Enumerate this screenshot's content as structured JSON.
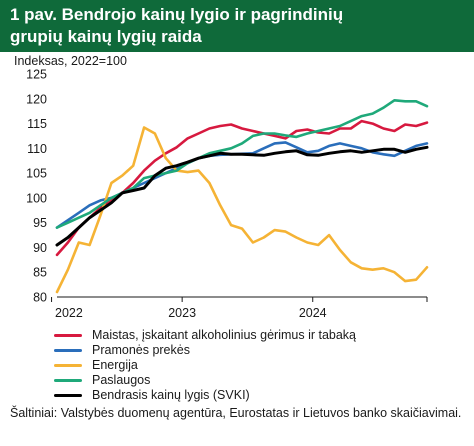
{
  "header": {
    "title_line1": "1 pav. Bendrojo kainų lygio ir pagrindinių",
    "title_line2": "grupių kainų lygių raida"
  },
  "chart_data": {
    "type": "line",
    "title": "1 pav. Bendrojo kainų lygio ir pagrindinių grupių kainų lygių raida",
    "ylabel": "Indeksas, 2022=100",
    "xlabel": "",
    "ylim": [
      80,
      125
    ],
    "yticks": [
      80,
      85,
      90,
      95,
      100,
      105,
      110,
      115,
      120,
      125
    ],
    "x_tick_labels": [
      "2022",
      "2023",
      "2024"
    ],
    "grid": false,
    "legend_placement": "bottom",
    "periods": [
      "2022-01",
      "2022-02",
      "2022-03",
      "2022-04",
      "2022-05",
      "2022-06",
      "2022-07",
      "2022-08",
      "2022-09",
      "2022-10",
      "2022-11",
      "2022-12",
      "2023-01",
      "2023-02",
      "2023-03",
      "2023-04",
      "2023-05",
      "2023-06",
      "2023-07",
      "2023-08",
      "2023-09",
      "2023-10",
      "2023-11",
      "2023-12",
      "2024-01",
      "2024-02",
      "2024-03",
      "2024-04",
      "2024-05",
      "2024-06",
      "2024-07",
      "2024-08",
      "2024-09",
      "2024-10",
      "2024-11"
    ],
    "series": [
      {
        "name": "Maistas, įskaitant alkoholinius gėrimus ir tabaką",
        "color": "#d7193f",
        "values": [
          88.5,
          91,
          94,
          96,
          98,
          99.5,
          101,
          103,
          105.5,
          107.5,
          109,
          110.2,
          112,
          113,
          114,
          114.5,
          114.8,
          114,
          113.5,
          113,
          112.5,
          112,
          113.5,
          113.8,
          113.2,
          113,
          114,
          114,
          115.5,
          115,
          114,
          113.5,
          114.8,
          114.5,
          115.2
        ]
      },
      {
        "name": "Pramonės prekės",
        "color": "#2a6ebb",
        "values": [
          94,
          95.5,
          97,
          98.5,
          99.5,
          100,
          101,
          102,
          103,
          104,
          105,
          106,
          107,
          108,
          108.5,
          108.7,
          108.8,
          108.9,
          109,
          110,
          111,
          111.2,
          110.2,
          109.2,
          109.5,
          110.5,
          111,
          110.5,
          110,
          109.2,
          108.8,
          108.5,
          109.5,
          110.5,
          111
        ]
      },
      {
        "name": "Energija",
        "color": "#f5b335",
        "values": [
          81,
          85.5,
          91,
          90.5,
          96.5,
          103,
          104.5,
          106.5,
          114.2,
          113,
          108,
          105.5,
          105.2,
          105.5,
          103,
          98.5,
          94.5,
          93.8,
          91,
          92,
          93.5,
          93.2,
          92,
          91,
          90.5,
          92.5,
          89.5,
          87,
          85.8,
          85.5,
          85.8,
          85,
          83.2,
          83.5,
          86
        ]
      },
      {
        "name": "Paslaugos",
        "color": "#1fa97a",
        "values": [
          94,
          95,
          96,
          97,
          98.5,
          100,
          101,
          102,
          104,
          104.5,
          105,
          105.5,
          107,
          108,
          109,
          109.5,
          110,
          111,
          112.5,
          113,
          113,
          112.6,
          112.3,
          113,
          113.5,
          114,
          114.5,
          115.5,
          116.5,
          117,
          118.2,
          119.7,
          119.5,
          119.5,
          118.5
        ]
      },
      {
        "name": "Bendrasis kainų lygis (SVKI)",
        "color": "#000000",
        "values": [
          90.5,
          92,
          94,
          96,
          97.5,
          99,
          101,
          101.5,
          102,
          104.5,
          106,
          106.5,
          107.2,
          108,
          108.5,
          109,
          108.8,
          108.8,
          108.7,
          108.6,
          109,
          109.3,
          109.5,
          108.7,
          108.6,
          109,
          109.3,
          109.5,
          109.2,
          109.5,
          109.8,
          109.8,
          109.2,
          109.8,
          110.2
        ]
      }
    ]
  },
  "source_text": "Šaltiniai: Valstybės duomenų agentūra, Eurostatas ir Lietuvos banko skaičiavimai."
}
